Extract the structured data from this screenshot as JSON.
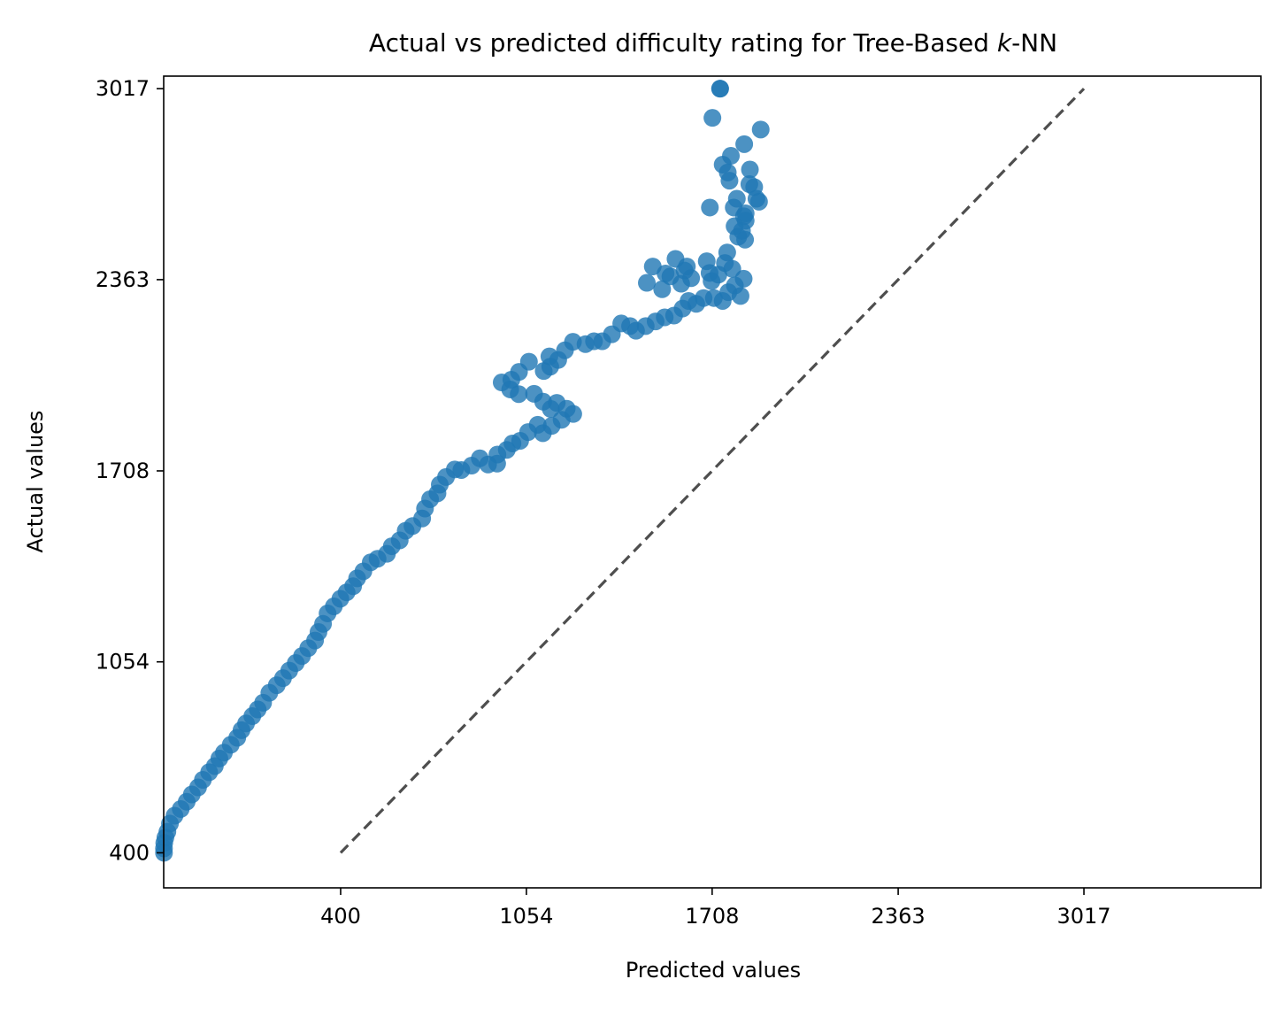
{
  "chart_data": {
    "type": "scatter",
    "title_main": "Actual vs predicted difficulty rating for Tree-Based ",
    "title_italic": "k",
    "title_suffix": "-NN",
    "xlabel": "Predicted values",
    "ylabel": "Actual values",
    "xlim": [
      -223,
      3640
    ],
    "ylim": [
      280,
      3060
    ],
    "xticks": [
      400,
      1054,
      1708,
      2363,
      3017
    ],
    "yticks": [
      400,
      1054,
      1708,
      2363,
      3017
    ],
    "xtick_labels": [
      "400",
      "1054",
      "1708",
      "2363",
      "3017"
    ],
    "ytick_labels": [
      "400",
      "1054",
      "1708",
      "2363",
      "3017"
    ],
    "grid": false,
    "legend": false,
    "identity_line": {
      "from": [
        400,
        400
      ],
      "to": [
        3017,
        3017
      ],
      "style": "dashed"
    },
    "series": [
      {
        "marker_color": "#1f77b4",
        "marker_opacity": 0.8,
        "points": [
          [
            1736,
            3017
          ],
          [
            1736,
            3017
          ],
          [
            1709,
            2917
          ],
          [
            1879,
            2877
          ],
          [
            1821,
            2827
          ],
          [
            1774,
            2787
          ],
          [
            1745,
            2757
          ],
          [
            1763,
            2730
          ],
          [
            1841,
            2740
          ],
          [
            1769,
            2702
          ],
          [
            1839,
            2690
          ],
          [
            1856,
            2680
          ],
          [
            1864,
            2640
          ],
          [
            1795,
            2640
          ],
          [
            1873,
            2630
          ],
          [
            1784,
            2610
          ],
          [
            1826,
            2590
          ],
          [
            1700,
            2610
          ],
          [
            1820,
            2580
          ],
          [
            1826,
            2565
          ],
          [
            1787,
            2546
          ],
          [
            1824,
            2500
          ],
          [
            1813,
            2530
          ],
          [
            1800,
            2510
          ],
          [
            1761,
            2456
          ],
          [
            1753,
            2420
          ],
          [
            1699,
            2386
          ],
          [
            1689,
            2426
          ],
          [
            1619,
            2408
          ],
          [
            1611,
            2394
          ],
          [
            1579,
            2434
          ],
          [
            1561,
            2374
          ],
          [
            1544,
            2384
          ],
          [
            1532,
            2330
          ],
          [
            1478,
            2352
          ],
          [
            1499,
            2408
          ],
          [
            1599,
            2349
          ],
          [
            1634,
            2368
          ],
          [
            1706,
            2358
          ],
          [
            1730,
            2380
          ],
          [
            1779,
            2400
          ],
          [
            1819,
            2366
          ],
          [
            1788,
            2343
          ],
          [
            1808,
            2307
          ],
          [
            1765,
            2320
          ],
          [
            1745,
            2290
          ],
          [
            1714,
            2300
          ],
          [
            1678,
            2300
          ],
          [
            1652,
            2280
          ],
          [
            1625,
            2290
          ],
          [
            1604,
            2264
          ],
          [
            1574,
            2240
          ],
          [
            1541,
            2234
          ],
          [
            1509,
            2220
          ],
          [
            1474,
            2204
          ],
          [
            1440,
            2188
          ],
          [
            1419,
            2204
          ],
          [
            1388,
            2213
          ],
          [
            1355,
            2176
          ],
          [
            1321,
            2152
          ],
          [
            1292,
            2152
          ],
          [
            1262,
            2142
          ],
          [
            1218,
            2150
          ],
          [
            1190,
            2121
          ],
          [
            1135,
            2100
          ],
          [
            1166,
            2088
          ],
          [
            1138,
            2065
          ],
          [
            1115,
            2050
          ],
          [
            1063,
            2082
          ],
          [
            1028,
            2047
          ],
          [
            1001,
            2020
          ],
          [
            967,
            2011
          ],
          [
            997,
            1987
          ],
          [
            1027,
            1971
          ],
          [
            1081,
            1972
          ],
          [
            1113,
            1945
          ],
          [
            1140,
            1920
          ],
          [
            1161,
            1941
          ],
          [
            1196,
            1921
          ],
          [
            1219,
            1903
          ],
          [
            1178,
            1883
          ],
          [
            1143,
            1862
          ],
          [
            1112,
            1837
          ],
          [
            1094,
            1866
          ],
          [
            1060,
            1841
          ],
          [
            1032,
            1811
          ],
          [
            1005,
            1802
          ],
          [
            985,
            1780
          ],
          [
            952,
            1764
          ],
          [
            951,
            1733
          ],
          [
            919,
            1730
          ],
          [
            890,
            1751
          ],
          [
            861,
            1726
          ],
          [
            825,
            1711
          ],
          [
            802,
            1713
          ],
          [
            771,
            1687
          ],
          [
            749,
            1661
          ],
          [
            741,
            1631
          ],
          [
            715,
            1611
          ],
          [
            697,
            1579
          ],
          [
            687,
            1545
          ],
          [
            653,
            1519
          ],
          [
            629,
            1503
          ],
          [
            608,
            1470
          ],
          [
            580,
            1450
          ],
          [
            563,
            1424
          ],
          [
            530,
            1407
          ],
          [
            506,
            1395
          ],
          [
            480,
            1364
          ],
          [
            458,
            1340
          ],
          [
            444,
            1313
          ],
          [
            421,
            1292
          ],
          [
            399,
            1270
          ],
          [
            376,
            1244
          ],
          [
            354,
            1220
          ],
          [
            338,
            1184
          ],
          [
            322,
            1156
          ],
          [
            310,
            1127
          ],
          [
            286,
            1101
          ],
          [
            264,
            1074
          ],
          [
            242,
            1050
          ],
          [
            219,
            1024
          ],
          [
            197,
            998
          ],
          [
            175,
            974
          ],
          [
            149,
            948
          ],
          [
            127,
            914
          ],
          [
            108,
            891
          ],
          [
            89,
            868
          ],
          [
            67,
            843
          ],
          [
            51,
            820
          ],
          [
            36,
            794
          ],
          [
            13,
            770
          ],
          [
            -11,
            743
          ],
          [
            -27,
            723
          ],
          [
            -43,
            697
          ],
          [
            -63,
            676
          ],
          [
            -85,
            650
          ],
          [
            -102,
            624
          ],
          [
            -124,
            600
          ],
          [
            -142,
            575
          ],
          [
            -163,
            550
          ],
          [
            -185,
            527
          ],
          [
            -201,
            500
          ],
          [
            -210,
            472
          ],
          [
            -217,
            452
          ],
          [
            -221,
            434
          ],
          [
            -222,
            415
          ],
          [
            -222,
            400
          ]
        ]
      }
    ]
  }
}
